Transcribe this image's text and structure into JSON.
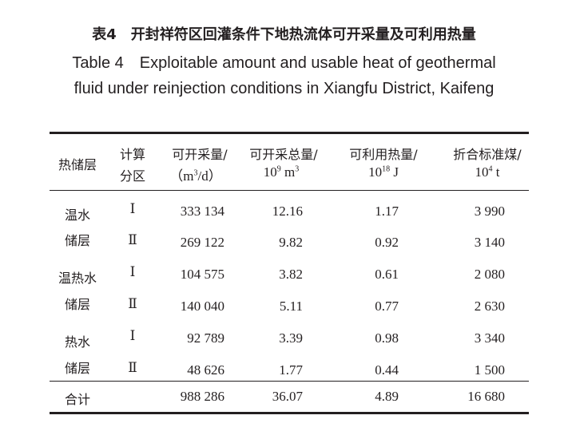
{
  "caption_cn": "表4　开封祥符区回灌条件下地热流体可开采量及可利用热量",
  "caption_en": "Table 4　Exploitable amount and usable heat of geothermal fluid under reinjection conditions in Xiangfu District, Kaifeng",
  "header": {
    "col1": "热储层",
    "col2": [
      "计算",
      "分区"
    ],
    "col3": [
      "可开采量/",
      "（m",
      "3",
      "/d）"
    ],
    "col4": [
      "可开采总量/",
      "10",
      "9",
      " m",
      "3"
    ],
    "col5": [
      "可利用热量/",
      "10",
      "18",
      " J"
    ],
    "col6": [
      "折合标准煤/",
      "10",
      "4",
      " t"
    ]
  },
  "groups": [
    {
      "name": [
        "温水",
        "储层"
      ],
      "rows": [
        {
          "zone": "Ⅰ",
          "amount": "333 134",
          "total": "12.16",
          "heat": "1.17",
          "coal": "3 990"
        },
        {
          "zone": "Ⅱ",
          "amount": "269 122",
          "total": "9.82",
          "heat": "0.92",
          "coal": "3 140"
        }
      ]
    },
    {
      "name": [
        "温热水",
        "储层"
      ],
      "rows": [
        {
          "zone": "Ⅰ",
          "amount": "104 575",
          "total": "3.82",
          "heat": "0.61",
          "coal": "2 080"
        },
        {
          "zone": "Ⅱ",
          "amount": "140 040",
          "total": "5.11",
          "heat": "0.77",
          "coal": "2 630"
        }
      ]
    },
    {
      "name": [
        "热水",
        "储层"
      ],
      "rows": [
        {
          "zone": "Ⅰ",
          "amount": "92 789",
          "total": "3.39",
          "heat": "0.98",
          "coal": "3 340"
        },
        {
          "zone": "Ⅱ",
          "amount": "48 626",
          "total": "1.77",
          "heat": "0.44",
          "coal": "1 500"
        }
      ]
    }
  ],
  "total": {
    "label": "合计",
    "amount": "988 286",
    "total": "36.07",
    "heat": "4.89",
    "coal": "16 680"
  }
}
